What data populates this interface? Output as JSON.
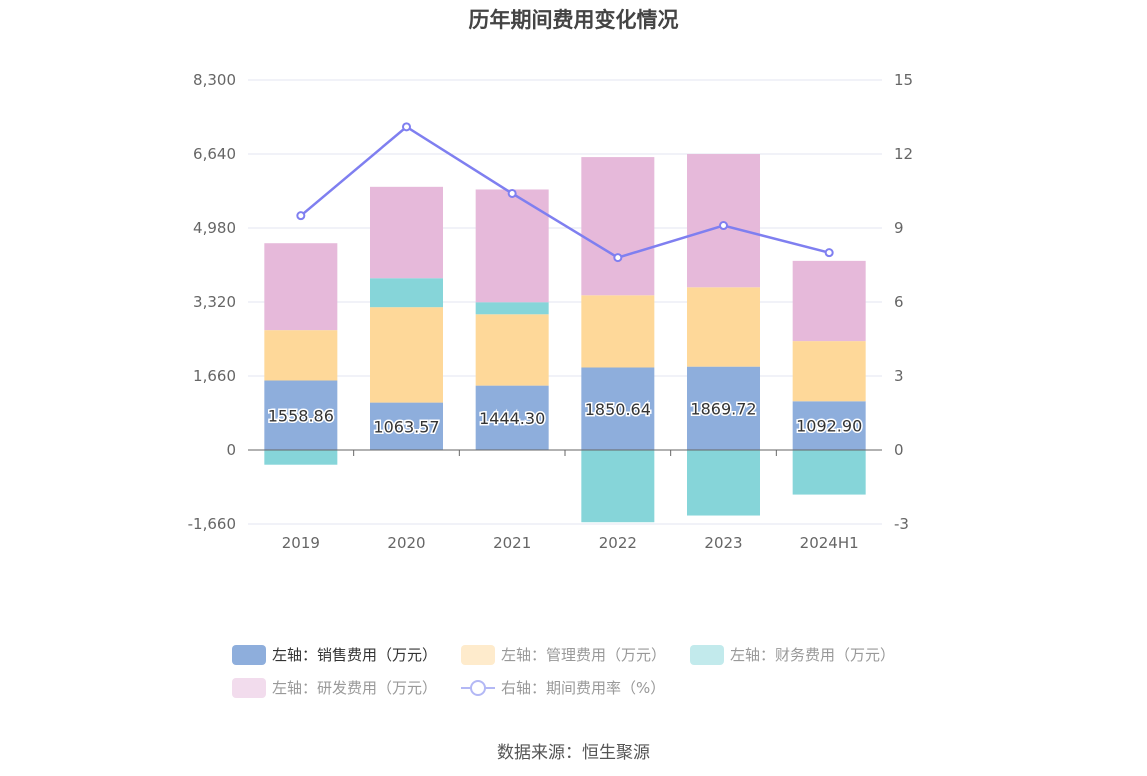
{
  "title": "历年期间费用变化情况",
  "source": "数据来源：恒生聚源",
  "colors": {
    "sales": "#8eaedc",
    "mgmt": "#fed899",
    "finance": "#86d5d9",
    "rd": "#e6b9da",
    "rate": "#7f7ff0"
  },
  "legend": {
    "sales": "左轴：销售费用（万元）",
    "mgmt": "左轴：管理费用（万元）",
    "finance": "左轴：财务费用（万元）",
    "rd": "左轴：研发费用（万元）",
    "rate": "右轴：期间费用率（%）"
  },
  "chart_data": {
    "type": "bar",
    "stacked": true,
    "categories": [
      "2019",
      "2020",
      "2021",
      "2022",
      "2023",
      "2024H1"
    ],
    "series": [
      {
        "name": "左轴：销售费用（万元）",
        "axis": "left",
        "values": [
          1558.86,
          1063.57,
          1444.3,
          1850.64,
          1869.72,
          1092.9
        ],
        "labels": [
          "1558.86",
          "1063.57",
          "1444.30",
          "1850.64",
          "1869.72",
          "1092.90"
        ]
      },
      {
        "name": "左轴：管理费用（万元）",
        "axis": "left",
        "values": [
          1130,
          2140,
          1600,
          1620,
          1780,
          1350
        ]
      },
      {
        "name": "左轴：财务费用（万元）",
        "axis": "left",
        "values": [
          -330,
          650,
          270,
          -1620,
          -1470,
          -1000
        ]
      },
      {
        "name": "左轴：研发费用（万元）",
        "axis": "left",
        "values": [
          1950,
          2050,
          2530,
          3100,
          2990,
          1800
        ]
      },
      {
        "name": "右轴：期间费用率（%）",
        "axis": "right",
        "type": "line",
        "values": [
          9.5,
          13.1,
          10.4,
          7.8,
          9.1,
          8.0
        ]
      }
    ],
    "left_axis": {
      "ticks": [
        "8,300",
        "6,640",
        "4,980",
        "3,320",
        "1,660",
        "0",
        "-1,660"
      ],
      "min": -1660,
      "max": 8300
    },
    "right_axis": {
      "ticks": [
        "15",
        "12",
        "9",
        "6",
        "3",
        "0",
        "-3"
      ],
      "min": -3,
      "max": 15
    },
    "grid": true,
    "legend_position": "bottom"
  }
}
